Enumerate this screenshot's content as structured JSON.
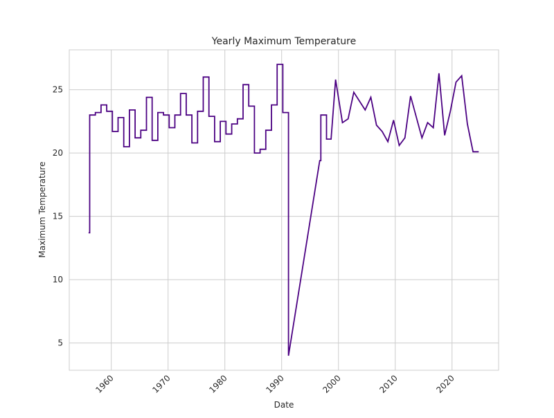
{
  "chart_data": {
    "type": "line",
    "title": "Yearly Maximum Temperature",
    "xlabel": "Date",
    "ylabel": "Maximum Temperature",
    "xlim": [
      1952.6,
      2028.2
    ],
    "ylim": [
      2.85,
      28.15
    ],
    "grid": true,
    "legend": "none",
    "x_ticks": [
      1960,
      1970,
      1980,
      1990,
      2000,
      2010,
      2020
    ],
    "x_tick_labels": [
      "1960",
      "1970",
      "1980",
      "1990",
      "2000",
      "2010",
      "2020"
    ],
    "y_ticks": [
      5,
      10,
      15,
      20,
      25
    ],
    "y_tick_labels": [
      "5",
      "10",
      "15",
      "20",
      "25"
    ],
    "colors": {
      "line": "#4b0082",
      "grid": "#cccccc",
      "frame": "#cccccc"
    },
    "series": [
      {
        "x": [
          1956.0,
          1956.2,
          1956.2,
          1957.2,
          1957.2,
          1958.2,
          1958.2,
          1959.2,
          1959.2,
          1960.2,
          1960.2,
          1961.2,
          1961.2,
          1962.2,
          1962.2,
          1963.2,
          1963.2,
          1964.2,
          1964.2,
          1965.2,
          1965.2,
          1966.2,
          1966.2,
          1967.2,
          1967.2,
          1968.2,
          1968.2,
          1969.2,
          1969.2,
          1970.2,
          1970.2,
          1971.2,
          1971.2,
          1972.2,
          1972.2,
          1973.2,
          1973.2,
          1974.2,
          1974.2,
          1975.2,
          1975.2,
          1976.2,
          1976.2,
          1977.2,
          1977.2,
          1978.2,
          1978.2,
          1979.2,
          1979.2,
          1980.2,
          1980.2,
          1981.2,
          1981.2,
          1982.2,
          1982.2,
          1983.2,
          1983.2,
          1984.2,
          1984.2,
          1985.2,
          1985.2,
          1986.2,
          1986.2,
          1987.2,
          1987.2,
          1988.2,
          1988.2,
          1989.2,
          1989.2,
          1990.2,
          1990.2,
          1991.2,
          1991.2,
          1996.7,
          1996.9,
          1996.9,
          1997.9,
          1997.9,
          1998.7,
          1999.5,
          2000.7,
          2000.7,
          2001.7,
          2001.7,
          2002.7,
          2002.7,
          2003.7,
          2003.7,
          2004.7,
          2004.7,
          2005.7,
          2005.7,
          2006.7,
          2006.7,
          2007.7,
          2007.7,
          2008.7,
          2008.7,
          2009.7,
          2009.7,
          2010.7,
          2010.7,
          2011.7,
          2011.7,
          2012.7,
          2012.7,
          2014.7,
          2014.7,
          2015.7,
          2015.7,
          2016.7,
          2016.7,
          2017.7,
          2017.7,
          2018.7,
          2018.7,
          2019.7,
          2019.7,
          2020.7,
          2020.7,
          2021.7,
          2021.7,
          2022.7,
          2022.7,
          2023.7,
          2023.7,
          2024.7
        ],
        "y": [
          13.7,
          13.7,
          23.0,
          23.0,
          23.2,
          23.2,
          23.8,
          23.8,
          23.3,
          23.3,
          21.7,
          21.7,
          22.8,
          22.8,
          20.5,
          20.5,
          23.4,
          23.4,
          21.2,
          21.2,
          21.8,
          21.8,
          24.4,
          24.4,
          21.0,
          21.0,
          23.2,
          23.2,
          23.0,
          23.0,
          22.0,
          22.0,
          23.0,
          23.0,
          24.7,
          24.7,
          23.0,
          23.0,
          20.8,
          20.8,
          23.3,
          23.3,
          26.0,
          26.0,
          22.9,
          22.9,
          20.9,
          20.9,
          22.5,
          22.5,
          21.5,
          21.5,
          22.3,
          22.3,
          22.7,
          22.7,
          25.4,
          25.4,
          23.7,
          23.7,
          20.0,
          20.0,
          20.3,
          20.3,
          21.8,
          21.8,
          23.8,
          23.8,
          27.0,
          27.0,
          23.2,
          23.2,
          4.0,
          19.4,
          19.4,
          23.0,
          23.0,
          21.1,
          21.1,
          25.8,
          22.4,
          22.4,
          22.7,
          22.7,
          24.8,
          24.8,
          24.1,
          24.1,
          23.4,
          23.4,
          24.4,
          24.4,
          22.2,
          22.2,
          21.7,
          21.7,
          20.9,
          20.9,
          22.6,
          22.6,
          20.6,
          20.6,
          21.2,
          21.2,
          24.5,
          24.5,
          21.2,
          21.2,
          22.4,
          22.4,
          22.0,
          22.0,
          26.3,
          26.3,
          21.4,
          21.4,
          23.3,
          23.3,
          25.6,
          25.6,
          26.1,
          26.1,
          22.3,
          22.3,
          20.1,
          20.1,
          20.1
        ]
      }
    ]
  }
}
